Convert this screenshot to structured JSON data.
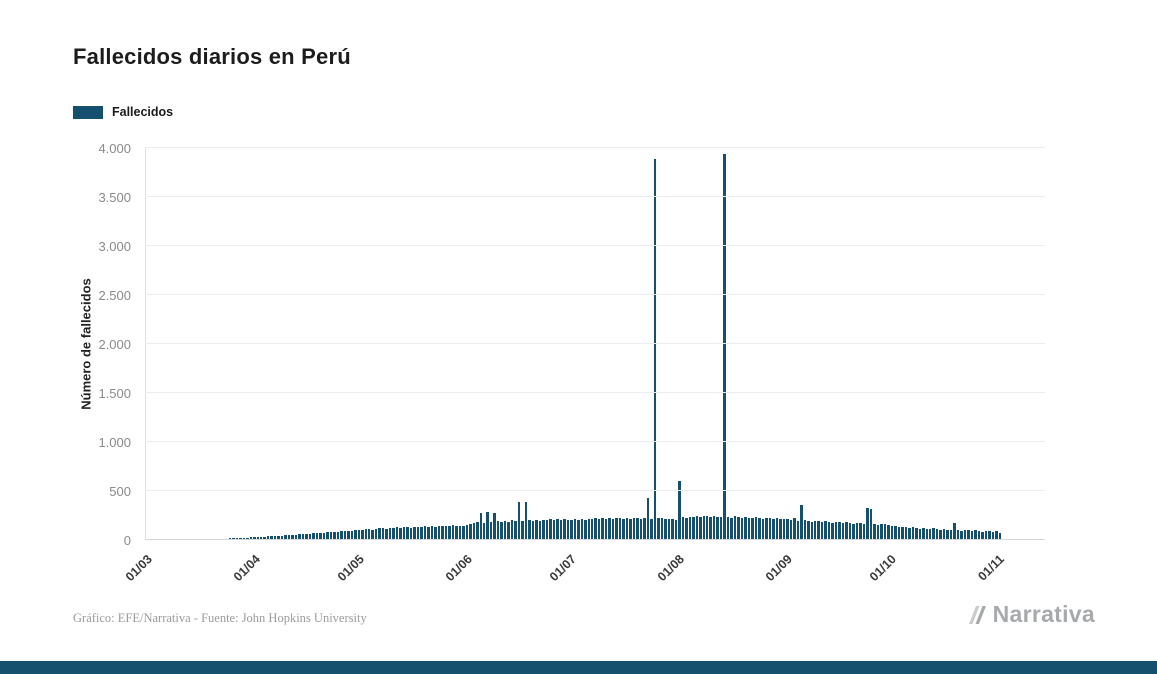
{
  "header": {
    "title": "Fallecidos diarios en Perú"
  },
  "legend": {
    "label": "Fallecidos",
    "color": "#15506F"
  },
  "chart_data": {
    "type": "bar",
    "title": "Fallecidos diarios en Perú",
    "xlabel": "",
    "ylabel": "Número de fallecidos",
    "ylim": [
      0,
      4000
    ],
    "grid": true,
    "legend_position": "top-left",
    "period": "daily",
    "x_range": [
      "01/03",
      "01/11"
    ],
    "x_tick_labels": [
      "01/03",
      "01/04",
      "01/05",
      "01/06",
      "01/07",
      "01/08",
      "01/09",
      "01/10",
      "01/11"
    ],
    "x_tick_day_indices": [
      0,
      31,
      61,
      92,
      122,
      153,
      184,
      214,
      245
    ],
    "y_ticks": [
      0,
      500,
      1000,
      1500,
      2000,
      2500,
      3000,
      3500,
      4000
    ],
    "y_tick_labels": [
      "0",
      "500",
      "1.000",
      "1.500",
      "2.000",
      "2.500",
      "3.000",
      "3.500",
      "4.000"
    ],
    "annotations": {
      "peak_1": 3890,
      "peak_2": 3935
    },
    "series": [
      {
        "name": "Fallecidos",
        "color": "#15506F",
        "values": [
          0,
          0,
          0,
          0,
          0,
          0,
          0,
          0,
          0,
          0,
          0,
          0,
          0,
          0,
          0,
          0,
          0,
          0,
          1,
          2,
          2,
          3,
          4,
          5,
          6,
          8,
          9,
          11,
          13,
          15,
          18,
          17,
          19,
          22,
          24,
          26,
          28,
          30,
          33,
          35,
          38,
          40,
          42,
          45,
          47,
          50,
          52,
          55,
          57,
          60,
          62,
          65,
          68,
          70,
          73,
          75,
          78,
          80,
          83,
          86,
          90,
          92,
          95,
          98,
          100,
          96,
          104,
          108,
          110,
          105,
          112,
          115,
          118,
          112,
          120,
          123,
          117,
          125,
          128,
          122,
          130,
          126,
          133,
          128,
          135,
          131,
          138,
          133,
          140,
          135,
          129,
          137,
          148,
          155,
          162,
          170,
          270,
          165,
          272,
          175,
          268,
          180,
          172,
          185,
          178,
          190,
          182,
          375,
          188,
          380,
          192,
          185,
          195,
          188,
          198,
          190,
          200,
          193,
          202,
          195,
          205,
          198,
          195,
          200,
          192,
          205,
          198,
          208,
          200,
          210,
          202,
          212,
          205,
          215,
          208,
          218,
          210,
          205,
          212,
          208,
          215,
          210,
          205,
          212,
          420,
          208,
          3890,
          215,
          210,
          205,
          208,
          202,
          198,
          590,
          225,
          218,
          230,
          222,
          235,
          228,
          240,
          232,
          226,
          238,
          230,
          222,
          3935,
          228,
          220,
          232,
          225,
          218,
          228,
          220,
          212,
          224,
          216,
          208,
          220,
          212,
          205,
          215,
          208,
          200,
          205,
          198,
          210,
          185,
          350,
          192,
          185,
          178,
          188,
          180,
          172,
          182,
          175,
          168,
          178,
          170,
          162,
          172,
          165,
          158,
          168,
          160,
          152,
          320,
          310,
          155,
          148,
          158,
          150,
          142,
          138,
          130,
          122,
          128,
          120,
          112,
          118,
          110,
          102,
          112,
          105,
          98,
          108,
          100,
          92,
          102,
          95,
          88,
          160,
          90,
          85,
          95,
          88,
          80,
          90,
          82,
          75,
          85,
          78,
          70,
          80,
          65
        ]
      }
    ]
  },
  "footer": {
    "credit": "Gráfico: EFE/Narrativa - Fuente: John Hopkins University",
    "brand": "Narrativa",
    "bar_color": "#15506F"
  }
}
